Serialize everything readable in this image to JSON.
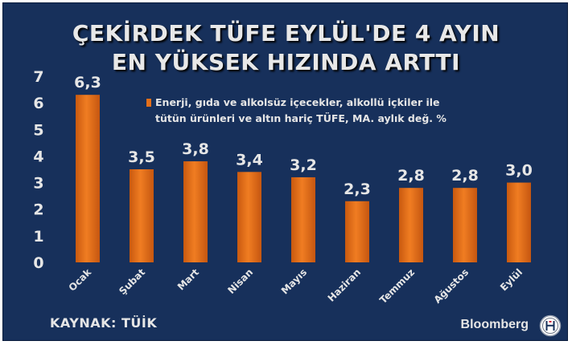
{
  "title_lines": [
    "ÇEKİRDEK TÜFE EYLÜL'DE 4 AYIN",
    "EN YÜKSEK HIZINDA ARTTI"
  ],
  "source": "KAYNAK: TÜİK",
  "brand": "Bloomberg",
  "logo_text": "HT",
  "colors": {
    "background": "#17305b",
    "bar": "#e46f1a",
    "text": "#e6e6e6"
  },
  "chart_data": {
    "type": "bar",
    "categories": [
      "Ocak",
      "Şubat",
      "Mart",
      "Nisan",
      "Mayıs",
      "Haziran",
      "Temmuz",
      "Ağustos",
      "Eylül"
    ],
    "series": [
      {
        "name": "Enerji, gıda ve alkolsüz içecekler, alkollü içkiler ile tütün ürünleri ve altın hariç TÜFE, MA. aylık değ. %",
        "legend_lines": [
          "Enerji, gıda ve alkolsüz içecekler, alkollü içkiler ile",
          "tütün ürünleri ve altın hariç TÜFE, MA. aylık değ. %"
        ],
        "values": [
          6.3,
          3.5,
          3.8,
          3.4,
          3.2,
          2.3,
          2.8,
          2.8,
          3.0
        ],
        "labels": [
          "6,3",
          "3,5",
          "3,8",
          "3,4",
          "3,2",
          "2,3",
          "2,8",
          "2,8",
          "3,0"
        ]
      }
    ],
    "ylim": [
      0,
      7
    ],
    "yticks": [
      0,
      1,
      2,
      3,
      4,
      5,
      6,
      7
    ],
    "grid": false,
    "legend_position": "top-right"
  }
}
